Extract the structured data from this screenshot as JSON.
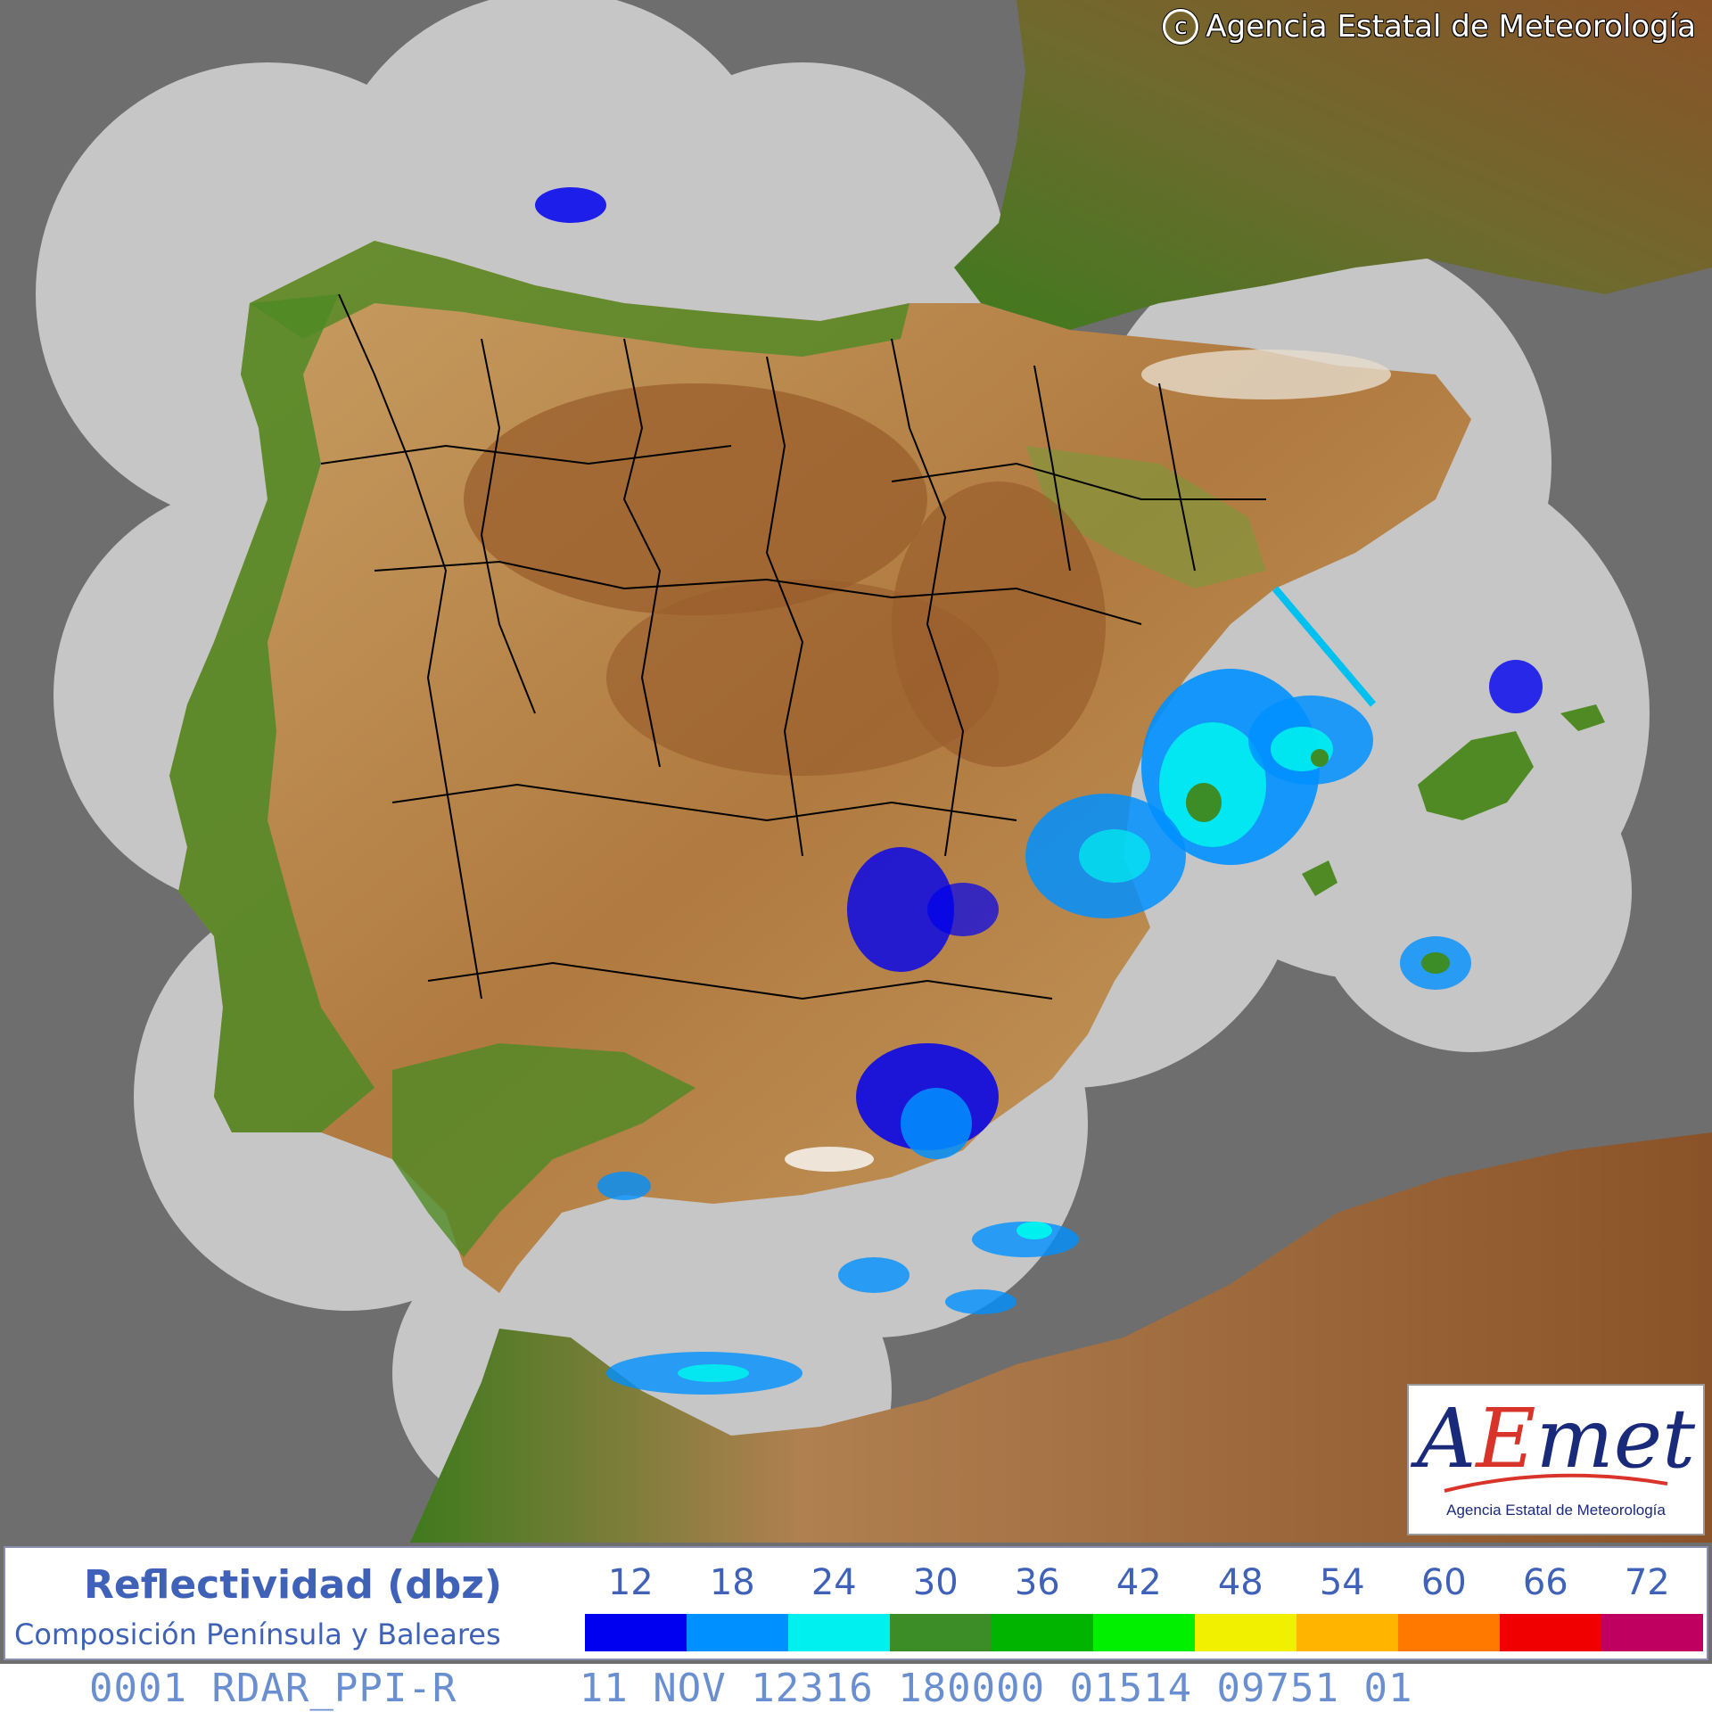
{
  "copyright": {
    "text": "Agencia Estatal de Meteorología",
    "icon": "copyright-icon"
  },
  "logo": {
    "main_pre": "A",
    "main_e": "E",
    "main_post": "met",
    "subtitle": "Agencia Estatal de Meteorología"
  },
  "legend": {
    "title": "Reflectividad (dbz)",
    "subtitle": "Composición Península y Baleares",
    "scale": [
      {
        "label": "12",
        "color": "#0000f0"
      },
      {
        "label": "18",
        "color": "#0090ff"
      },
      {
        "label": "24",
        "color": "#00f0f0"
      },
      {
        "label": "30",
        "color": "#3c8c28"
      },
      {
        "label": "36",
        "color": "#00b400"
      },
      {
        "label": "42",
        "color": "#00f000"
      },
      {
        "label": "48",
        "color": "#f0f000"
      },
      {
        "label": "54",
        "color": "#ffb400"
      },
      {
        "label": "60",
        "color": "#ff7800"
      },
      {
        "label": "66",
        "color": "#f00000"
      },
      {
        "label": "72",
        "color": "#c00060"
      }
    ]
  },
  "footer": {
    "text": "0001 RDAR_PPI-R     11 NOV 12316 180000 01514 09751 01"
  },
  "colors": {
    "sea": "#6e6e6e",
    "radar_coverage": "#c6c6c6",
    "lowland": "#3f7a1e",
    "plateau": "#c9a064",
    "highland": "#9a5e2c",
    "border": "#000000"
  }
}
